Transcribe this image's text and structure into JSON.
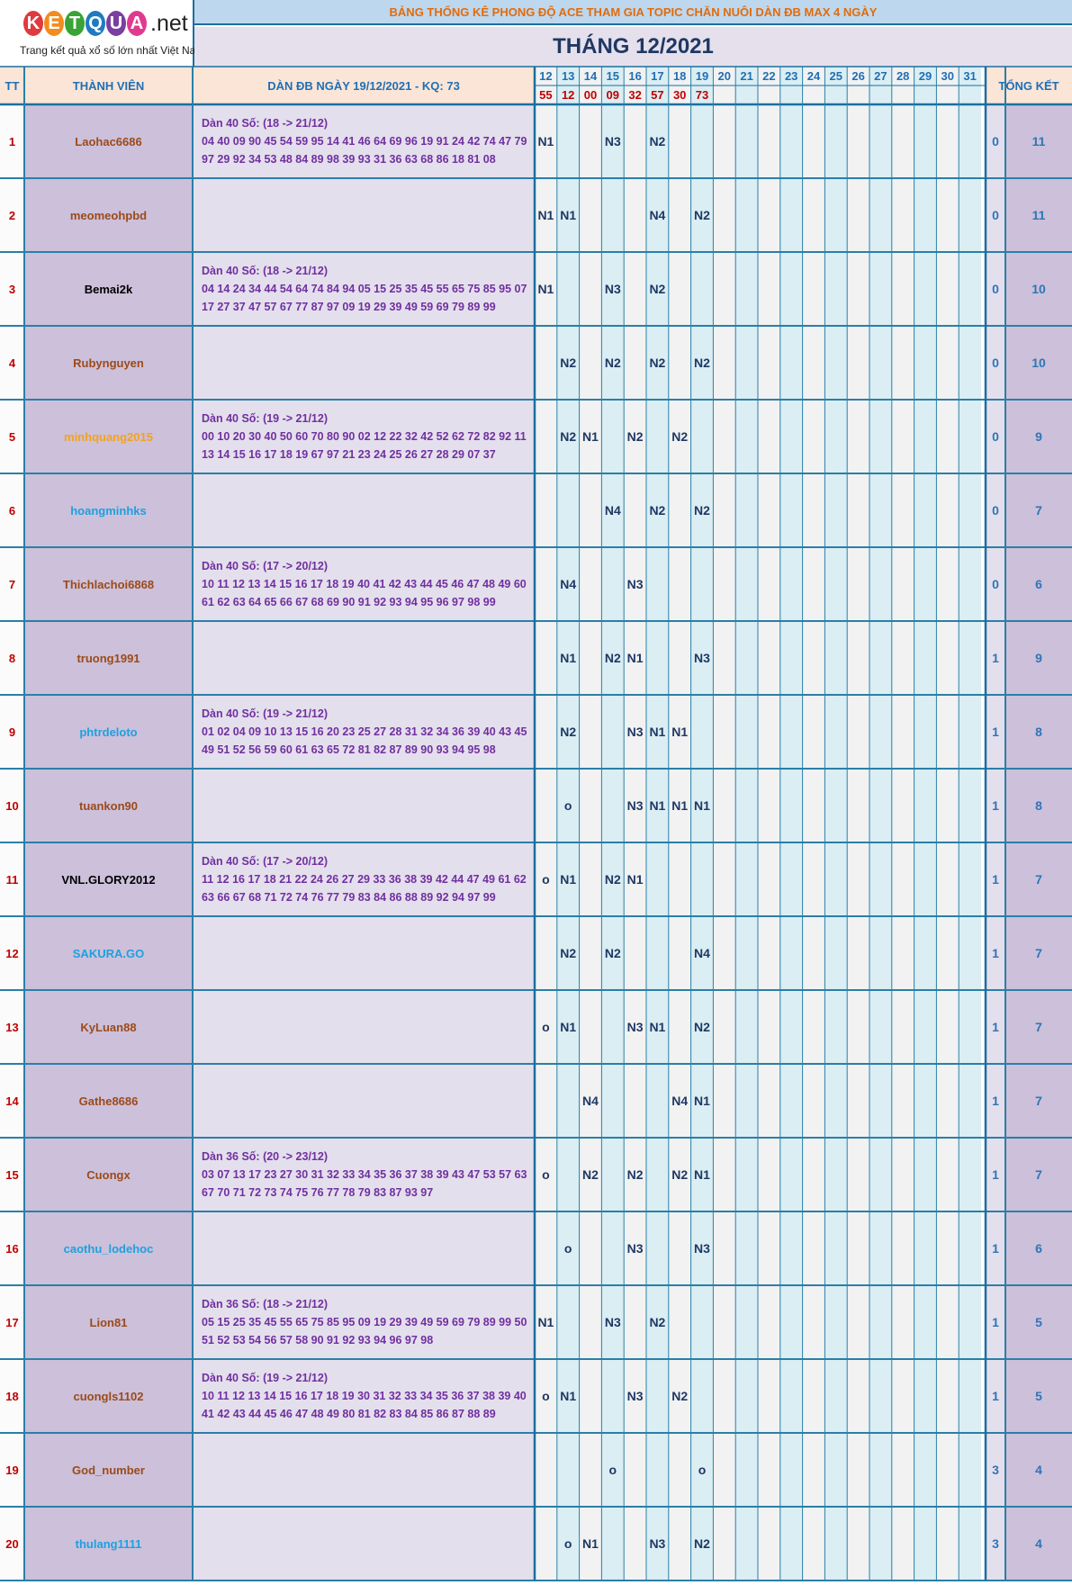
{
  "logo": {
    "letters": [
      "K",
      "E",
      "T",
      "Q",
      "U",
      "A"
    ],
    "letter_colors": [
      "#e03a3e",
      "#f28c1f",
      "#3aa335",
      "#1f7bc1",
      "#7a3fa0",
      "#e03a8f"
    ],
    "net": ".net",
    "tagline": "Trang kết quả xổ số lớn nhất Việt Nam"
  },
  "header": {
    "subtitle": "BẢNG THỐNG KÊ PHONG ĐỘ ACE THAM GIA TOPIC CHĂN NUÔI DÀN ĐB MAX 4 NGÀY",
    "title": "THÁNG 12/2021"
  },
  "columns": {
    "tt": "TT",
    "member": "THÀNH VIÊN",
    "dan": "DÀN ĐB NGÀY 19/12/2021 - KQ: 73",
    "total": "TỔNG KẾT",
    "days": [
      "12",
      "13",
      "14",
      "15",
      "16",
      "17",
      "18",
      "19",
      "20",
      "21",
      "22",
      "23",
      "24",
      "25",
      "26",
      "27",
      "28",
      "29",
      "30",
      "31"
    ],
    "results": [
      "55",
      "12",
      "00",
      "09",
      "32",
      "57",
      "30",
      "73",
      "",
      "",
      "",
      "",
      "",
      "",
      "",
      "",
      "",
      "",
      "",
      ""
    ]
  },
  "rows": [
    {
      "tt": "1",
      "name": "Laohac6686",
      "name_color": "#9c4a1a",
      "dan_title": "Dàn 40 Số: (18 -> 21/12)",
      "dan_line1": "04 40 09 90 45 54 59 95 14 41 46 64 69 96 19 91 24 42 74 47 79",
      "dan_line2": "97 29 92 34 53 48 84 89 98 39 93 31 36 63 68 86 18 81 08",
      "marks": [
        "N1",
        "",
        "",
        "N3",
        "",
        "N2",
        "",
        "",
        "",
        "",
        "",
        "",
        "",
        "",
        "",
        "",
        "",
        "",
        "",
        ""
      ],
      "sum": "0",
      "total": "11"
    },
    {
      "tt": "2",
      "name": "meomeohpbd",
      "name_color": "#9c4a1a",
      "dan_title": "",
      "dan_line1": "",
      "dan_line2": "",
      "marks": [
        "N1",
        "N1",
        "",
        "",
        "",
        "N4",
        "",
        "N2",
        "",
        "",
        "",
        "",
        "",
        "",
        "",
        "",
        "",
        "",
        "",
        ""
      ],
      "sum": "0",
      "total": "11"
    },
    {
      "tt": "3",
      "name": "Bemai2k",
      "name_color": "#000000",
      "dan_title": "Dàn 40 Số: (18 -> 21/12)",
      "dan_line1": "04 14 24 34 44 54 64 74 84 94 05 15 25 35 45 55 65 75 85 95 07",
      "dan_line2": "17 27 37 47 57 67 77 87 97 09 19 29 39 49 59 69 79 89 99",
      "marks": [
        "N1",
        "",
        "",
        "N3",
        "",
        "N2",
        "",
        "",
        "",
        "",
        "",
        "",
        "",
        "",
        "",
        "",
        "",
        "",
        "",
        ""
      ],
      "sum": "0",
      "total": "10"
    },
    {
      "tt": "4",
      "name": "Rubynguyen",
      "name_color": "#9c4a1a",
      "dan_title": "",
      "dan_line1": "",
      "dan_line2": "",
      "marks": [
        "",
        "N2",
        "",
        "N2",
        "",
        "N2",
        "",
        "N2",
        "",
        "",
        "",
        "",
        "",
        "",
        "",
        "",
        "",
        "",
        "",
        ""
      ],
      "sum": "0",
      "total": "10"
    },
    {
      "tt": "5",
      "name": "minhquang2015",
      "name_color": "#f4a21e",
      "dan_title": "Dàn 40 Số: (19 -> 21/12)",
      "dan_line1": "00 10 20 30 40 50 60 70 80 90 02 12 22 32 42 52 62 72 82 92 11",
      "dan_line2": "13 14 15 16 17 18 19 67 97 21 23 24 25 26 27 28 29 07 37",
      "marks": [
        "",
        "N2",
        "N1",
        "",
        "N2",
        "",
        "N2",
        "",
        "",
        "",
        "",
        "",
        "",
        "",
        "",
        "",
        "",
        "",
        "",
        ""
      ],
      "sum": "0",
      "total": "9"
    },
    {
      "tt": "6",
      "name": "hoangminhks",
      "name_color": "#1ea0e0",
      "dan_title": "",
      "dan_line1": "",
      "dan_line2": "",
      "marks": [
        "",
        "",
        "",
        "N4",
        "",
        "N2",
        "",
        "N2",
        "",
        "",
        "",
        "",
        "",
        "",
        "",
        "",
        "",
        "",
        "",
        ""
      ],
      "sum": "0",
      "total": "7"
    },
    {
      "tt": "7",
      "name": "Thichlachoi6868",
      "name_color": "#9c4a1a",
      "dan_title": "Dàn 40 Số: (17 -> 20/12)",
      "dan_line1": "10 11 12 13 14 15 16 17 18 19 40 41 42 43 44 45 46 47 48 49 60",
      "dan_line2": "61 62 63 64 65 66 67 68 69 90 91 92 93 94 95 96 97 98 99",
      "marks": [
        "",
        "N4",
        "",
        "",
        "N3",
        "",
        "",
        "",
        "",
        "",
        "",
        "",
        "",
        "",
        "",
        "",
        "",
        "",
        "",
        ""
      ],
      "sum": "0",
      "total": "6"
    },
    {
      "tt": "8",
      "name": "truong1991",
      "name_color": "#9c4a1a",
      "dan_title": "",
      "dan_line1": "",
      "dan_line2": "",
      "marks": [
        "",
        "N1",
        "",
        "N2",
        "N1",
        "",
        "",
        "N3",
        "",
        "",
        "",
        "",
        "",
        "",
        "",
        "",
        "",
        "",
        "",
        ""
      ],
      "sum": "1",
      "total": "9"
    },
    {
      "tt": "9",
      "name": "phtrdeloto",
      "name_color": "#1ea0e0",
      "dan_title": "Dàn 40 Số: (19 -> 21/12)",
      "dan_line1": "01 02 04 09 10 13 15 16 20 23 25 27 28 31 32 34 36 39 40 43 45",
      "dan_line2": "49 51 52 56 59 60 61 63 65 72 81 82 87 89 90 93 94 95 98",
      "marks": [
        "",
        "N2",
        "",
        "",
        "N3",
        "N1",
        "N1",
        "",
        "",
        "",
        "",
        "",
        "",
        "",
        "",
        "",
        "",
        "",
        "",
        ""
      ],
      "sum": "1",
      "total": "8"
    },
    {
      "tt": "10",
      "name": "tuankon90",
      "name_color": "#9c4a1a",
      "dan_title": "",
      "dan_line1": "",
      "dan_line2": "",
      "marks": [
        "",
        "o",
        "",
        "",
        "N3",
        "N1",
        "N1",
        "N1",
        "",
        "",
        "",
        "",
        "",
        "",
        "",
        "",
        "",
        "",
        "",
        ""
      ],
      "sum": "1",
      "total": "8"
    },
    {
      "tt": "11",
      "name": "VNL.GLORY2012",
      "name_color": "#000000",
      "dan_title": "Dàn 40 Số: (17 -> 20/12)",
      "dan_line1": "11 12 16 17 18 21 22 24 26 27 29 33 36 38 39 42 44 47 49 61 62",
      "dan_line2": "63 66 67 68 71 72 74 76 77 79 83 84 86 88 89 92 94 97 99",
      "marks": [
        "o",
        "N1",
        "",
        "N2",
        "N1",
        "",
        "",
        "",
        "",
        "",
        "",
        "",
        "",
        "",
        "",
        "",
        "",
        "",
        "",
        ""
      ],
      "sum": "1",
      "total": "7"
    },
    {
      "tt": "12",
      "name": "SAKURA.GO",
      "name_color": "#1ea0e0",
      "dan_title": "",
      "dan_line1": "",
      "dan_line2": "",
      "marks": [
        "",
        "N2",
        "",
        "N2",
        "",
        "",
        "",
        "N4",
        "",
        "",
        "",
        "",
        "",
        "",
        "",
        "",
        "",
        "",
        "",
        ""
      ],
      "sum": "1",
      "total": "7"
    },
    {
      "tt": "13",
      "name": "KyLuan88",
      "name_color": "#9c4a1a",
      "dan_title": "",
      "dan_line1": "",
      "dan_line2": "",
      "marks": [
        "o",
        "N1",
        "",
        "",
        "N3",
        "N1",
        "",
        "N2",
        "",
        "",
        "",
        "",
        "",
        "",
        "",
        "",
        "",
        "",
        "",
        ""
      ],
      "sum": "1",
      "total": "7"
    },
    {
      "tt": "14",
      "name": "Gathe8686",
      "name_color": "#9c4a1a",
      "dan_title": "",
      "dan_line1": "",
      "dan_line2": "",
      "marks": [
        "",
        "",
        "N4",
        "",
        "",
        "",
        "N4",
        "N1",
        "",
        "",
        "",
        "",
        "",
        "",
        "",
        "",
        "",
        "",
        "",
        ""
      ],
      "sum": "1",
      "total": "7"
    },
    {
      "tt": "15",
      "name": "Cuongx",
      "name_color": "#9c4a1a",
      "dan_title": "Dàn 36 Số: (20 -> 23/12)",
      "dan_line1": "03 07 13 17 23 27 30 31 32 33 34 35 36 37 38 39 43 47 53 57 63",
      "dan_line2": "67 70 71 72 73 74 75 76 77 78 79 83 87 93 97",
      "marks": [
        "o",
        "",
        "N2",
        "",
        "N2",
        "",
        "N2",
        "N1",
        "",
        "",
        "",
        "",
        "",
        "",
        "",
        "",
        "",
        "",
        "",
        ""
      ],
      "sum": "1",
      "total": "7"
    },
    {
      "tt": "16",
      "name": "caothu_lodehoc",
      "name_color": "#1ea0e0",
      "dan_title": "",
      "dan_line1": "",
      "dan_line2": "",
      "marks": [
        "",
        "o",
        "",
        "",
        "N3",
        "",
        "",
        "N3",
        "",
        "",
        "",
        "",
        "",
        "",
        "",
        "",
        "",
        "",
        "",
        ""
      ],
      "sum": "1",
      "total": "6"
    },
    {
      "tt": "17",
      "name": "Lion81",
      "name_color": "#9c4a1a",
      "dan_title": "Dàn 36 Số: (18 -> 21/12)",
      "dan_line1": "05 15 25 35 45 55 65 75 85 95 09 19 29 39 49 59 69 79 89 99 50",
      "dan_line2": "51 52 53 54 56 57 58 90 91 92 93 94 96 97 98",
      "marks": [
        "N1",
        "",
        "",
        "N3",
        "",
        "N2",
        "",
        "",
        "",
        "",
        "",
        "",
        "",
        "",
        "",
        "",
        "",
        "",
        "",
        ""
      ],
      "sum": "1",
      "total": "5"
    },
    {
      "tt": "18",
      "name": "cuongls1102",
      "name_color": "#9c4a1a",
      "dan_title": "Dàn 40 Số: (19 -> 21/12)",
      "dan_line1": "10 11 12 13 14 15 16 17 18 19 30 31 32 33 34 35 36 37 38 39 40",
      "dan_line2": "41 42 43 44 45 46 47 48 49 80 81 82 83 84 85 86 87 88 89",
      "marks": [
        "o",
        "N1",
        "",
        "",
        "N3",
        "",
        "N2",
        "",
        "",
        "",
        "",
        "",
        "",
        "",
        "",
        "",
        "",
        "",
        "",
        ""
      ],
      "sum": "1",
      "total": "5"
    },
    {
      "tt": "19",
      "name": "God_number",
      "name_color": "#9c4a1a",
      "dan_title": "",
      "dan_line1": "",
      "dan_line2": "",
      "marks": [
        "",
        "",
        "",
        "o",
        "",
        "",
        "",
        "o",
        "",
        "",
        "",
        "",
        "",
        "",
        "",
        "",
        "",
        "",
        "",
        ""
      ],
      "sum": "3",
      "total": "4"
    },
    {
      "tt": "20",
      "name": "thulang1111",
      "name_color": "#1ea0e0",
      "dan_title": "",
      "dan_line1": "",
      "dan_line2": "",
      "marks": [
        "",
        "o",
        "N1",
        "",
        "",
        "N3",
        "",
        "N2",
        "",
        "",
        "",
        "",
        "",
        "",
        "",
        "",
        "",
        "",
        "",
        ""
      ],
      "sum": "3",
      "total": "4"
    }
  ]
}
